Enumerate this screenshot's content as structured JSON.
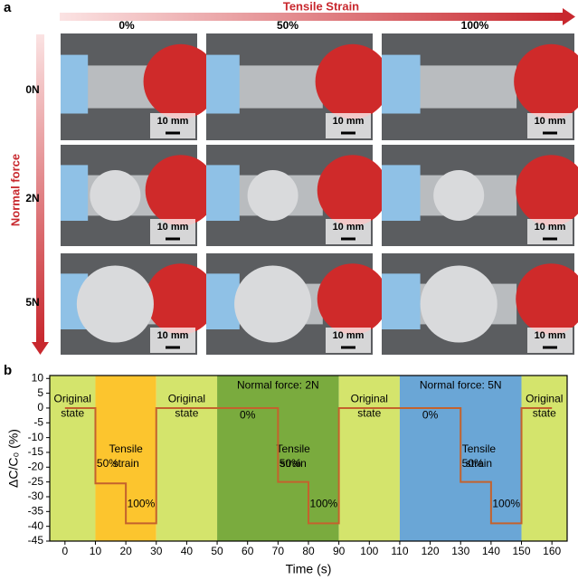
{
  "panel_a": {
    "label": "a",
    "axis_title": "Tensile Strain",
    "columns": [
      "0%",
      "50%",
      "100%"
    ],
    "row_axis_title": "Normal force",
    "rows": [
      "0N",
      "2N",
      "5N"
    ],
    "scale_bar": "10 mm"
  },
  "chart_data": {
    "type": "line",
    "panel_label": "b",
    "x_label": "Time (s)",
    "y_label": "ΔC/C₀ (%)",
    "xlim": [
      -5,
      165
    ],
    "xticks": [
      0,
      10,
      20,
      30,
      40,
      50,
      60,
      70,
      80,
      90,
      100,
      110,
      120,
      130,
      140,
      150,
      160
    ],
    "ylim": [
      -45,
      11
    ],
    "yticks": [
      -45,
      -40,
      -35,
      -30,
      -25,
      -20,
      -15,
      -10,
      -5,
      0,
      5,
      10
    ],
    "regions": [
      {
        "from": -5,
        "to": 10,
        "color": "#d4e46c",
        "label": [
          "Original",
          "state"
        ]
      },
      {
        "from": 10,
        "to": 30,
        "color": "#fcc52e",
        "label": [
          "Tensile",
          "strain"
        ]
      },
      {
        "from": 30,
        "to": 50,
        "color": "#d4e46c",
        "label": [
          "Original",
          "state"
        ]
      },
      {
        "from": 50,
        "to": 90,
        "color": "#7aab3e",
        "label": [
          "Normal force: 2N"
        ]
      },
      {
        "from": 90,
        "to": 110,
        "color": "#d4e46c",
        "label": [
          "Original",
          "state"
        ]
      },
      {
        "from": 110,
        "to": 150,
        "color": "#6aa6d6",
        "label": [
          "Normal force: 5N"
        ]
      },
      {
        "from": 150,
        "to": 165,
        "color": "#d4e46c",
        "label": [
          "Original",
          "state"
        ]
      }
    ],
    "annotations": [
      [
        "50%"
      ],
      [
        "100%"
      ],
      [
        "0%"
      ],
      [
        "Tensile",
        "strain"
      ],
      [
        "50%"
      ],
      [
        "100%"
      ],
      [
        "0%"
      ],
      [
        "Tensile",
        "strain"
      ],
      [
        "50%"
      ],
      [
        "100%"
      ]
    ],
    "series": [
      {
        "color": "#c4622d",
        "x": [
          0,
          10,
          10,
          20,
          20,
          30,
          30,
          70,
          70,
          80,
          80,
          90,
          90,
          130,
          130,
          140,
          140,
          150,
          150,
          160
        ],
        "values": [
          0,
          0,
          -25.5,
          -25.5,
          -39,
          -39,
          0,
          0,
          -25,
          -25,
          -39,
          -39,
          0,
          0,
          -25,
          -25,
          -39,
          -39,
          0,
          0
        ]
      }
    ]
  }
}
